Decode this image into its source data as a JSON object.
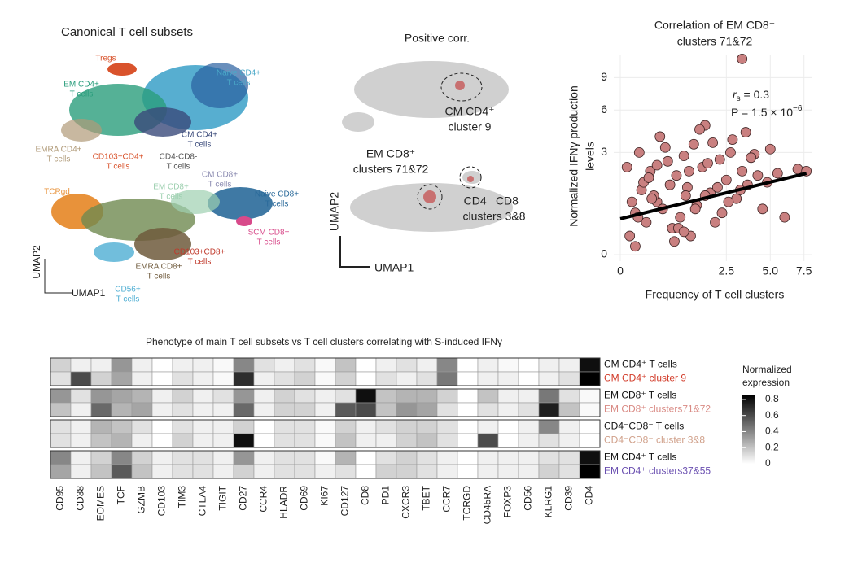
{
  "panel_a": {
    "title": "Canonical T cell subsets",
    "axis_x": "UMAP1",
    "axis_y": "UMAP2",
    "labels": [
      {
        "lines": [
          "Tregs"
        ],
        "color": "#d9532c"
      },
      {
        "lines": [
          "EM CD4+",
          "T cells"
        ],
        "color": "#2a9d7c"
      },
      {
        "lines": [
          "Naive CD4+",
          "T cells"
        ],
        "color": "#4aa8c8"
      },
      {
        "lines": [
          "CM CD4+",
          "T cells"
        ],
        "color": "#3a4a7a"
      },
      {
        "lines": [
          "EMRA CD4+",
          "T cells"
        ],
        "color": "#b09a78"
      },
      {
        "lines": [
          "CD103+CD4+",
          "T cells"
        ],
        "color": "#d9532c"
      },
      {
        "lines": [
          "CD4-CD8-",
          "T cells"
        ],
        "color": "#555555"
      },
      {
        "lines": [
          "CM CD8+",
          "T cells"
        ],
        "color": "#8a8ab0"
      },
      {
        "lines": [
          "EM CD8+",
          "T cells"
        ],
        "color": "#9ed0b0"
      },
      {
        "lines": [
          "TCRgd"
        ],
        "color": "#e8923a"
      },
      {
        "lines": [
          "Naive CD8+",
          "T cells"
        ],
        "color": "#2a6a9a"
      },
      {
        "lines": [
          "SCM CD8+",
          "T cells"
        ],
        "color": "#d84a8a"
      },
      {
        "lines": [
          "CD103+CD8+",
          "T cells"
        ],
        "color": "#c0392b"
      },
      {
        "lines": [
          "EMRA CD8+",
          "T cells"
        ],
        "color": "#6f5a3c"
      },
      {
        "lines": [
          "CD56+",
          "T cells"
        ],
        "color": "#4eaed3"
      }
    ]
  },
  "panel_b": {
    "title": "Positive corr.",
    "axis_x": "UMAP1",
    "axis_y": "UMAP2",
    "labels": [
      {
        "lines": [
          "CM CD4⁺",
          "cluster 9"
        ]
      },
      {
        "lines": [
          "EM CD8⁺",
          "clusters 71&72"
        ]
      },
      {
        "lines": [
          "CD4⁻ CD8⁻",
          "clusters 3&8"
        ]
      }
    ]
  },
  "chart_data": [
    {
      "type": "scatter",
      "title_lines": [
        "Correlation of EM CD8⁺",
        "clusters 71&72"
      ],
      "x_label": "Frequency of T cell clusters",
      "y_label_lines": [
        "Normalized IFNγ production",
        "levels"
      ],
      "color": "#c98080",
      "xscale": "sqrt",
      "yscale": "sqrt",
      "grid": true,
      "xlim": [
        0,
        8.2
      ],
      "ylim": [
        0,
        11.5
      ],
      "xticks": [
        0,
        2.5,
        {
          "value": 5,
          "label": "5.0"
        },
        7.5
      ],
      "yticks": [
        0,
        3,
        6,
        9
      ],
      "x": [
        0.02,
        0.05,
        0.1,
        0.15,
        0.2,
        0.3,
        0.05,
        0.08,
        0.12,
        0.4,
        0.5,
        0.6,
        0.25,
        0.35,
        0.7,
        0.8,
        0.9,
        1.0,
        1.1,
        1.2,
        1.3,
        1.5,
        1.6,
        1.8,
        2.0,
        2.2,
        2.5,
        2.8,
        3.0,
        3.3,
        3.6,
        4.0,
        4.5,
        5.0,
        5.5,
        6.0,
        7.0,
        7.7,
        0.03,
        0.18,
        0.45,
        0.65,
        0.95,
        1.4,
        1.7,
        2.3,
        2.7,
        3.2,
        3.8,
        4.2,
        0.01,
        0.07,
        0.22,
        0.55,
        0.75,
        1.05,
        1.25,
        1.9,
        2.1,
        2.6,
        3.5,
        4.8,
        0.3,
        0.9,
        1.6,
        3.3
      ],
      "y": [
        0.1,
        0.5,
        1.2,
        0.3,
        2.0,
        0.8,
        0.02,
        3.0,
        1.5,
        0.6,
        2.5,
        0.2,
        1.0,
        4.0,
        1.8,
        0.4,
        2.8,
        1.3,
        0.1,
        3.5,
        0.7,
        2.2,
        4.8,
        1.1,
        0.3,
        2.6,
        1.6,
        3.8,
        0.9,
        2.0,
        1.4,
        2.9,
        0.6,
        3.2,
        1.9,
        0.4,
        2.1,
        2.0,
        0.8,
        1.7,
        3.3,
        0.05,
        1.0,
        4.5,
        2.4,
        0.5,
        3.0,
        1.2,
        2.7,
        1.8,
        2.2,
        0.4,
        0.9,
        1.4,
        0.2,
        2.0,
        0.6,
        3.6,
        1.3,
        0.8,
        4.3,
        1.5,
        2.3,
        0.15,
        1.0,
        11.0
      ],
      "trend_line": {
        "x": [
          0,
          7.7
        ],
        "y": [
          0.37,
          1.9
        ]
      },
      "annotations": {
        "r_symbol": "r",
        "r_sub": "s",
        "r_value": " = 0.3",
        "p_text": "P = 1.5 × 10",
        "p_exp": "−6"
      }
    },
    {
      "type": "heatmap",
      "title": "Phenotype of main T cell subsets vs T cell clusters correlating with S-induced IFNγ",
      "columns": [
        "CD95",
        "CD38",
        "EOMES",
        "TCF",
        "GZMB",
        "CD103",
        "TIM3",
        "CTLA4",
        "TIGIT",
        "CD27",
        "CCR4",
        "HLADR",
        "CD69",
        "KI67",
        "CD127",
        "CD8",
        "PD1",
        "CXCR3",
        "TBET",
        "CCR7",
        "TCRGD",
        "CD45RA",
        "FOXP3",
        "CD56",
        "KLRG1",
        "CD39",
        "CD4"
      ],
      "rows": [
        {
          "label": "CM CD4⁺ T cells",
          "color": "#111111"
        },
        {
          "label": "CM CD4⁺ cluster 9",
          "color": "#d23c2a"
        },
        {
          "label": "EM CD8⁺ T cells",
          "color": "#111111"
        },
        {
          "label": "EM CD8⁺ clusters71&72",
          "color": "#d98a84"
        },
        {
          "label": "CD4⁻CD8⁻ T cells",
          "color": "#111111"
        },
        {
          "label": "CD4⁻CD8⁻ cluster 3&8",
          "color": "#d0a08a"
        },
        {
          "label": "EM CD4⁺ T cells",
          "color": "#111111"
        },
        {
          "label": "EM CD4⁺ clusters37&55",
          "color": "#6a4fb0"
        }
      ],
      "group_size": 2,
      "values": [
        [
          0.15,
          0.05,
          0.05,
          0.35,
          0.05,
          0,
          0.05,
          0.05,
          0.02,
          0.4,
          0.1,
          0.05,
          0.1,
          0.02,
          0.2,
          0,
          0.05,
          0.1,
          0.05,
          0.4,
          0,
          0.05,
          0.02,
          0,
          0.05,
          0.05,
          0.8
        ],
        [
          0.1,
          0.6,
          0.15,
          0.3,
          0.05,
          0,
          0.1,
          0.05,
          0.02,
          0.7,
          0.05,
          0.1,
          0.15,
          0.02,
          0.15,
          0,
          0.1,
          0.05,
          0.1,
          0.45,
          0,
          0.05,
          0.05,
          0,
          0.05,
          0.1,
          0.85
        ],
        [
          0.35,
          0.1,
          0.35,
          0.3,
          0.25,
          0.05,
          0.15,
          0.05,
          0.1,
          0.35,
          0.05,
          0.15,
          0.1,
          0.05,
          0.1,
          0.8,
          0.2,
          0.25,
          0.25,
          0.15,
          0,
          0.2,
          0.05,
          0.05,
          0.45,
          0.1,
          0.02
        ],
        [
          0.2,
          0.05,
          0.5,
          0.25,
          0.3,
          0.05,
          0.1,
          0.05,
          0.05,
          0.5,
          0.05,
          0.15,
          0.15,
          0.05,
          0.55,
          0.6,
          0.2,
          0.35,
          0.3,
          0.1,
          0,
          0.1,
          0.05,
          0.1,
          0.75,
          0.2,
          0.02
        ],
        [
          0.1,
          0.05,
          0.25,
          0.2,
          0.1,
          0,
          0.1,
          0.05,
          0.05,
          0.15,
          0,
          0.1,
          0.1,
          0.02,
          0.15,
          0.05,
          0.1,
          0.15,
          0.15,
          0.1,
          0,
          0.05,
          0,
          0.05,
          0.4,
          0.05,
          0
        ],
        [
          0.1,
          0.05,
          0.2,
          0.25,
          0.05,
          0,
          0.15,
          0.05,
          0.05,
          0.8,
          0,
          0.1,
          0.1,
          0.02,
          0.2,
          0.05,
          0.05,
          0.15,
          0.2,
          0.1,
          0,
          0.6,
          0,
          0.05,
          0.1,
          0.05,
          0
        ],
        [
          0.4,
          0.05,
          0.15,
          0.4,
          0.15,
          0.05,
          0.1,
          0.1,
          0.05,
          0.35,
          0.05,
          0.1,
          0.1,
          0.02,
          0.25,
          0,
          0.1,
          0.15,
          0.1,
          0.05,
          0,
          0.05,
          0.05,
          0.05,
          0.1,
          0.1,
          0.8
        ],
        [
          0.3,
          0.05,
          0.2,
          0.55,
          0.2,
          0.05,
          0.1,
          0.1,
          0.05,
          0.15,
          0.05,
          0.1,
          0.1,
          0.05,
          0.1,
          0,
          0.15,
          0.15,
          0.1,
          0.05,
          0,
          0.05,
          0.05,
          0.05,
          0.15,
          0.1,
          0.85
        ]
      ],
      "colorbar": {
        "title_lines": [
          "Normalized",
          "expression"
        ],
        "lim": [
          0,
          0.85
        ],
        "ticks": [
          0,
          0.2,
          0.4,
          0.6,
          0.8
        ]
      }
    }
  ]
}
